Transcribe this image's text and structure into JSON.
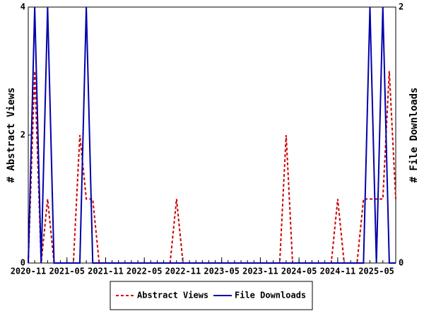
{
  "chart_data": {
    "type": "line",
    "x": [
      "2020-11",
      "2020-12",
      "2021-01",
      "2021-02",
      "2021-03",
      "2021-04",
      "2021-05",
      "2021-06",
      "2021-07",
      "2021-08",
      "2021-09",
      "2021-10",
      "2021-11",
      "2021-12",
      "2022-01",
      "2022-02",
      "2022-03",
      "2022-04",
      "2022-05",
      "2022-06",
      "2022-07",
      "2022-08",
      "2022-09",
      "2022-10",
      "2022-11",
      "2022-12",
      "2023-01",
      "2023-02",
      "2023-03",
      "2023-04",
      "2023-05",
      "2023-06",
      "2023-07",
      "2023-08",
      "2023-09",
      "2023-10",
      "2023-11",
      "2023-12",
      "2024-01",
      "2024-02",
      "2024-03",
      "2024-04",
      "2024-05",
      "2024-06",
      "2024-07",
      "2024-08",
      "2024-09",
      "2024-10",
      "2024-11",
      "2024-12",
      "2025-01",
      "2025-02",
      "2025-03",
      "2025-04",
      "2025-05",
      "2025-06",
      "2025-07",
      "2025-08"
    ],
    "xticks": [
      "2020-11",
      "2021-05",
      "2021-11",
      "2022-05",
      "2022-11",
      "2023-05",
      "2023-11",
      "2024-05",
      "2024-11",
      "2025-05"
    ],
    "ylabel": "# Abstract Views",
    "y2label": "# File Downloads",
    "ylim": [
      0,
      4
    ],
    "yticks": [
      0,
      2,
      4
    ],
    "y2lim": [
      0,
      2
    ],
    "y2ticks": [
      0,
      2
    ],
    "series": [
      {
        "name": "Abstract Views",
        "color": "#cc0000",
        "dash": true,
        "values": [
          0,
          3,
          0,
          1,
          0,
          0,
          0,
          0,
          2,
          1,
          1,
          0,
          0,
          0,
          0,
          0,
          0,
          0,
          0,
          0,
          0,
          0,
          0,
          1,
          0,
          0,
          0,
          0,
          0,
          0,
          0,
          0,
          0,
          0,
          0,
          0,
          0,
          0,
          0,
          0,
          2,
          0,
          0,
          0,
          0,
          0,
          0,
          0,
          1,
          0,
          0,
          0,
          1,
          1,
          1,
          1,
          3,
          1
        ]
      },
      {
        "name": "File Downloads",
        "color": "#0000aa",
        "dash": false,
        "axis": "y2",
        "values": [
          0,
          2,
          0,
          2,
          0,
          0,
          0,
          0,
          0,
          2,
          0,
          0,
          0,
          0,
          0,
          0,
          0,
          0,
          0,
          0,
          0,
          0,
          0,
          0,
          0,
          0,
          0,
          0,
          0,
          0,
          0,
          0,
          0,
          0,
          0,
          0,
          0,
          0,
          0,
          0,
          0,
          0,
          0,
          0,
          0,
          0,
          0,
          0,
          0,
          0,
          0,
          0,
          0,
          2,
          0,
          2,
          0,
          0
        ]
      }
    ]
  }
}
